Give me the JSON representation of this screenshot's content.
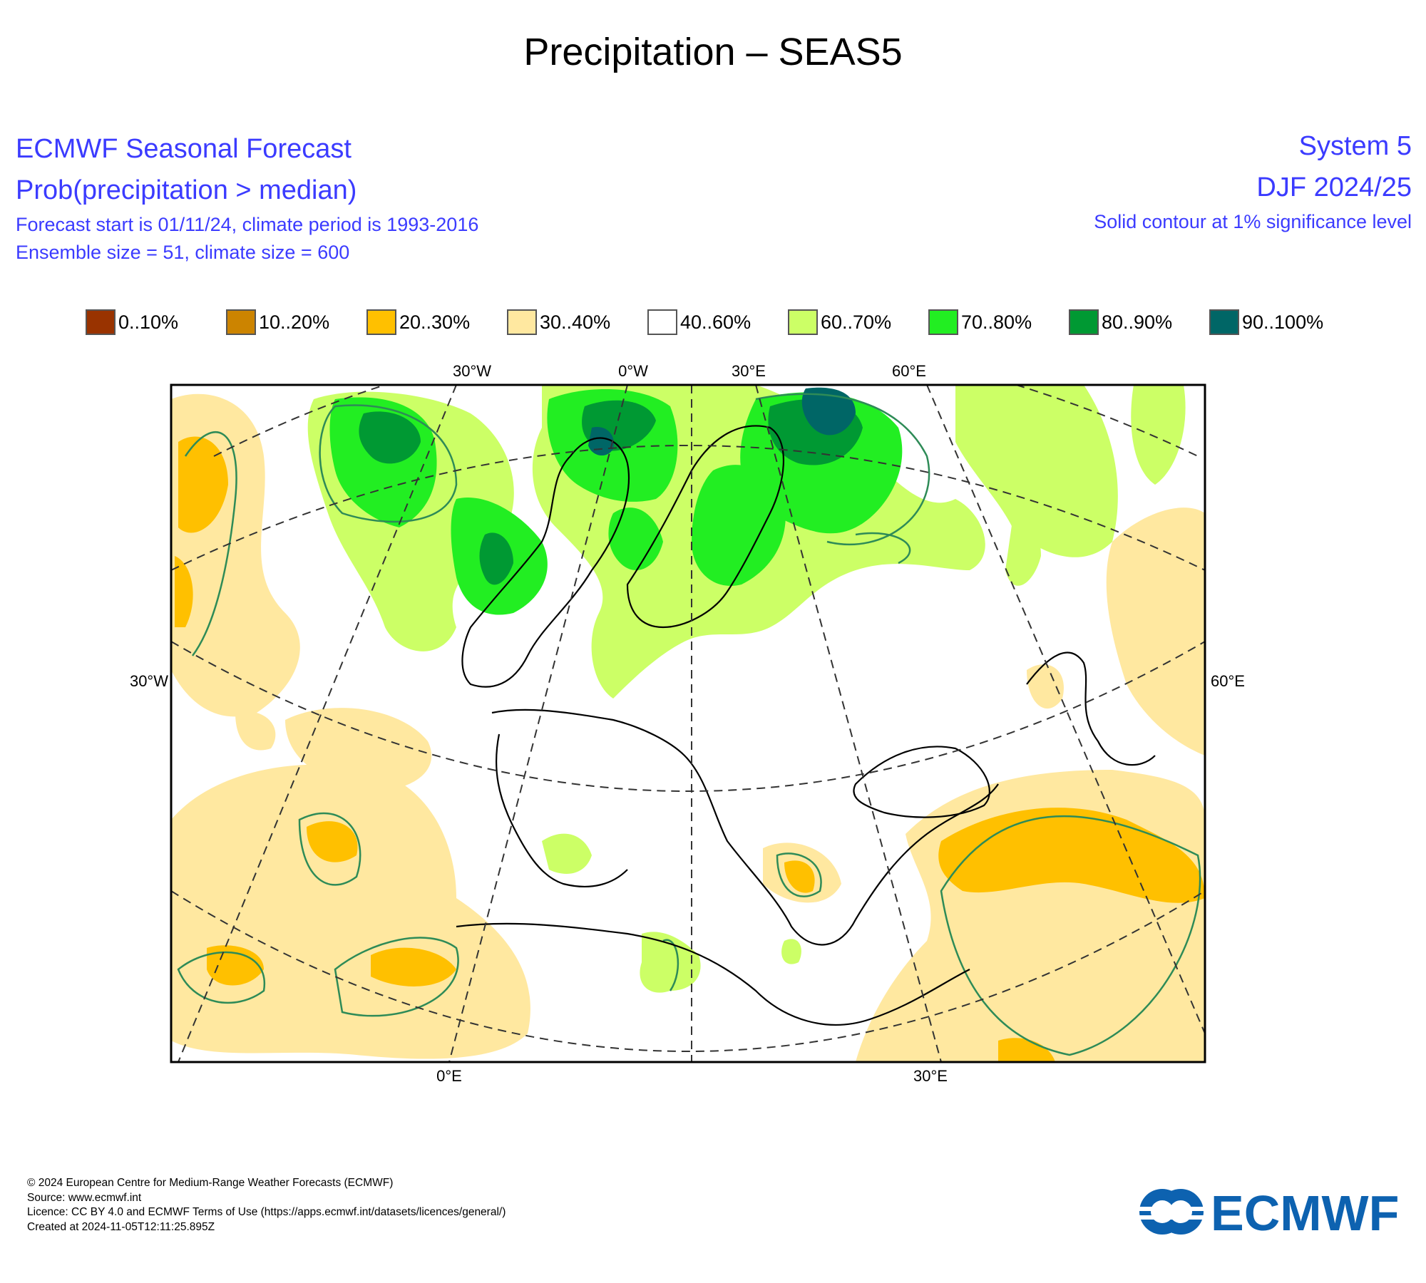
{
  "title": "Precipitation – SEAS5",
  "header_left": {
    "line1": "ECMWF Seasonal Forecast",
    "line2": "Prob(precipitation > median)",
    "line3": "Forecast start is 01/11/24, climate period is 1993-2016",
    "line4": "Ensemble size = 51, climate size = 600"
  },
  "header_right": {
    "line1": "System 5",
    "line2": "DJF 2024/25",
    "line3": "Solid contour at 1% significance level"
  },
  "legend": [
    {
      "label": "0..10%",
      "color": "#993300"
    },
    {
      "label": "10..20%",
      "color": "#cc8400"
    },
    {
      "label": "20..30%",
      "color": "#ffc000"
    },
    {
      "label": "30..40%",
      "color": "#ffe8a0"
    },
    {
      "label": "40..60%",
      "color": "#ffffff"
    },
    {
      "label": "60..70%",
      "color": "#ccff66"
    },
    {
      "label": "70..80%",
      "color": "#22ee22"
    },
    {
      "label": "80..90%",
      "color": "#009933"
    },
    {
      "label": "90..100%",
      "color": "#006666"
    }
  ],
  "map": {
    "ticks_top": [
      "30°W",
      "0°W",
      "30°E",
      "60°E"
    ],
    "tick_left": "30°W",
    "tick_right": "60°E",
    "ticks_bottom": [
      "0°E",
      "30°E"
    ]
  },
  "footer": {
    "line1": "© 2024 European Centre for Medium-Range Weather Forecasts (ECMWF)",
    "line2": "Source: www.ecmwf.int",
    "line3": "Licence: CC BY 4.0 and ECMWF Terms of Use (https://apps.ecmwf.int/datasets/licences/general/)",
    "line4": "Created at 2024-11-05T12:11:25.895Z"
  },
  "logo": {
    "text": "ECMWF",
    "color": "#0d62b0"
  }
}
